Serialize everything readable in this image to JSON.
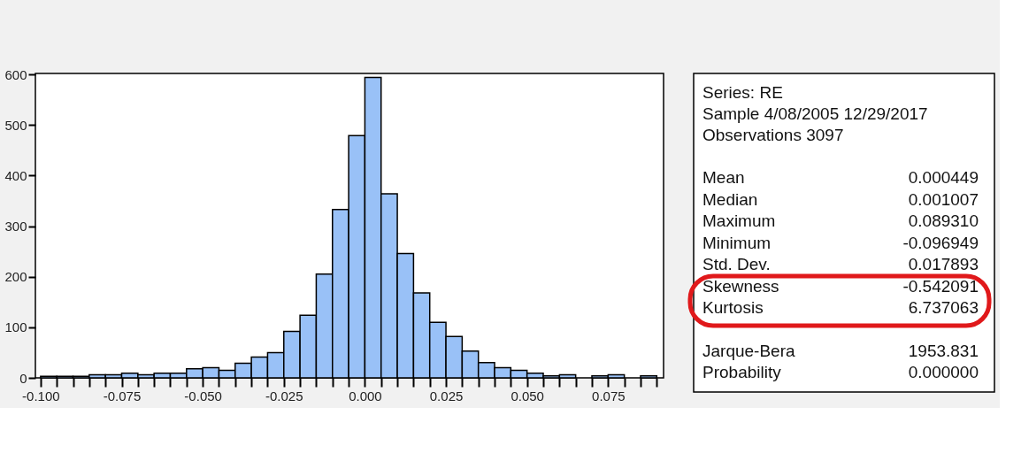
{
  "chart_data": {
    "type": "histogram",
    "bins": [
      -0.1,
      -0.095,
      -0.09,
      -0.085,
      -0.08,
      -0.075,
      -0.07,
      -0.065,
      -0.06,
      -0.055,
      -0.05,
      -0.045,
      -0.04,
      -0.035,
      -0.03,
      -0.025,
      -0.02,
      -0.015,
      -0.01,
      -0.005,
      0.0,
      0.005,
      0.01,
      0.015,
      0.02,
      0.025,
      0.03,
      0.035,
      0.04,
      0.045,
      0.05,
      0.055,
      0.06,
      0.065,
      0.07,
      0.075,
      0.08,
      0.085,
      0.09
    ],
    "values": [
      3,
      3,
      3,
      6,
      6,
      9,
      6,
      9,
      9,
      18,
      20,
      15,
      29,
      41,
      50,
      92,
      124,
      205,
      333,
      479,
      594,
      364,
      246,
      168,
      110,
      82,
      53,
      30,
      20,
      15,
      9,
      4,
      6,
      0,
      4,
      6,
      0,
      4
    ],
    "color": "#99c1f7",
    "xlim": [
      -0.1016,
      0.0921
    ],
    "xticks": [
      {
        "value": -0.1,
        "label": "-0.100"
      },
      {
        "value": -0.095,
        "label": null
      },
      {
        "value": -0.09,
        "label": null
      },
      {
        "value": -0.085,
        "label": null
      },
      {
        "value": -0.08,
        "label": null
      },
      {
        "value": -0.075,
        "label": "-0.075"
      },
      {
        "value": -0.07,
        "label": null
      },
      {
        "value": -0.065,
        "label": null
      },
      {
        "value": -0.06,
        "label": null
      },
      {
        "value": -0.055,
        "label": null
      },
      {
        "value": -0.05,
        "label": "-0.050"
      },
      {
        "value": -0.045,
        "label": null
      },
      {
        "value": -0.04,
        "label": null
      },
      {
        "value": -0.035,
        "label": null
      },
      {
        "value": -0.03,
        "label": null
      },
      {
        "value": -0.025,
        "label": "-0.025"
      },
      {
        "value": -0.02,
        "label": null
      },
      {
        "value": -0.015,
        "label": null
      },
      {
        "value": -0.01,
        "label": null
      },
      {
        "value": -0.005,
        "label": null
      },
      {
        "value": 0.0,
        "label": "0.000"
      },
      {
        "value": 0.005,
        "label": null
      },
      {
        "value": 0.01,
        "label": null
      },
      {
        "value": 0.015,
        "label": null
      },
      {
        "value": 0.02,
        "label": null
      },
      {
        "value": 0.025,
        "label": "0.025"
      },
      {
        "value": 0.03,
        "label": null
      },
      {
        "value": 0.035,
        "label": null
      },
      {
        "value": 0.04,
        "label": null
      },
      {
        "value": 0.045,
        "label": null
      },
      {
        "value": 0.05,
        "label": "0.050"
      },
      {
        "value": 0.055,
        "label": null
      },
      {
        "value": 0.06,
        "label": null
      },
      {
        "value": 0.065,
        "label": null
      },
      {
        "value": 0.07,
        "label": null
      },
      {
        "value": 0.075,
        "label": "0.075"
      },
      {
        "value": 0.08,
        "label": null
      },
      {
        "value": 0.085,
        "label": null
      },
      {
        "value": 0.09,
        "label": null
      }
    ],
    "ylim": [
      0,
      602
    ],
    "yticks": [
      0,
      100,
      200,
      300,
      400,
      500,
      600
    ],
    "grid": false,
    "annotations": [
      "Series: RE",
      "Sample 4/08/2005 12/29/2017",
      "Observations 3097",
      "Mean",
      "0.000449",
      "Median",
      "0.001007",
      "Maximum",
      "0.089310",
      "Minimum",
      "-0.096949",
      "Std. Dev.",
      "0.017893",
      "Skewness",
      "-0.542091",
      "Kurtosis",
      "6.737063",
      "Jarque-Bera",
      "1953.831",
      "Probability",
      "0.000000"
    ]
  }
}
